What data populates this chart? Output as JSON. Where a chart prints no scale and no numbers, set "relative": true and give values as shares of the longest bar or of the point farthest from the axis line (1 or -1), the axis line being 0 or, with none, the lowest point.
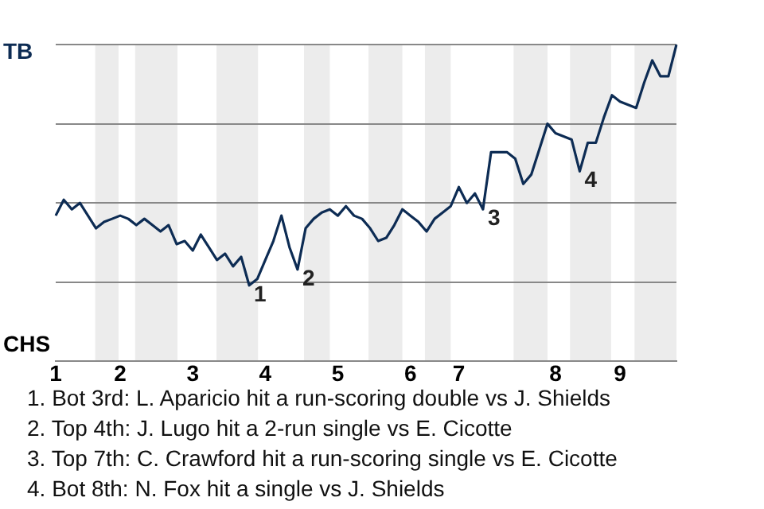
{
  "chart_data": {
    "type": "line",
    "relative": true,
    "grid": "y",
    "legend": false,
    "categories": [
      "1",
      null,
      null,
      null,
      null,
      null,
      null,
      null,
      "2",
      null,
      null,
      null,
      null,
      null,
      null,
      null,
      null,
      "3",
      null,
      null,
      null,
      null,
      null,
      null,
      null,
      null,
      "4",
      null,
      null,
      null,
      null,
      null,
      null,
      null,
      null,
      "5",
      null,
      null,
      null,
      null,
      null,
      null,
      null,
      null,
      "6",
      null,
      null,
      null,
      null,
      null,
      "7",
      null,
      null,
      null,
      null,
      null,
      null,
      null,
      null,
      null,
      null,
      null,
      "8",
      null,
      null,
      null,
      null,
      null,
      null,
      null,
      "9",
      null,
      null,
      null,
      null,
      null,
      null,
      null
    ],
    "values": [
      0.46,
      0.51,
      0.48,
      0.5,
      0.46,
      0.42,
      0.44,
      0.45,
      0.46,
      0.45,
      0.43,
      0.45,
      0.43,
      0.41,
      0.43,
      0.37,
      0.38,
      0.35,
      0.4,
      0.36,
      0.32,
      0.34,
      0.3,
      0.33,
      0.24,
      0.26,
      0.32,
      0.38,
      0.46,
      0.36,
      0.29,
      0.42,
      0.45,
      0.47,
      0.48,
      0.46,
      0.49,
      0.46,
      0.45,
      0.42,
      0.38,
      0.39,
      0.43,
      0.48,
      0.46,
      0.44,
      0.41,
      0.45,
      0.47,
      0.49,
      0.55,
      0.5,
      0.53,
      0.48,
      0.66,
      0.66,
      0.66,
      0.64,
      0.56,
      0.59,
      0.67,
      0.75,
      0.72,
      0.71,
      0.7,
      0.6,
      0.69,
      0.69,
      0.77,
      0.84,
      0.82,
      0.81,
      0.8,
      0.88,
      0.95,
      0.9,
      0.9,
      1
    ],
    "color": "#0d2c54",
    "annotations": [
      "TB",
      "CHS",
      "1",
      "2",
      "3",
      "4",
      "1. Bot 3rd: L. Aparicio hit a run-scoring double vs J. Shields",
      "2. Top 4th: J. Lugo hit a 2-run single vs E. Cicotte",
      "3. Top 7th: C. Crawford hit a run-scoring single vs E. Cicotte",
      "4. Bot 8th: N. Fox hit a single vs J. Shields"
    ]
  }
}
